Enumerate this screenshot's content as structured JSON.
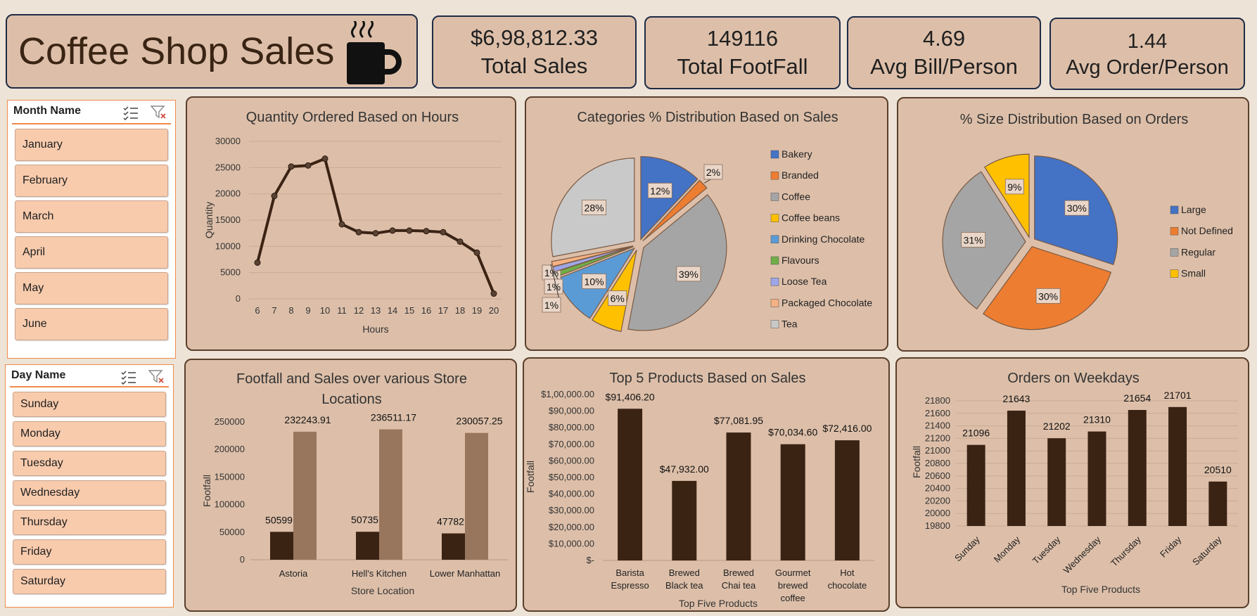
{
  "header": {
    "title": "Coffee Shop Sales",
    "icon": "coffee-mug-icon"
  },
  "kpis": [
    {
      "value": "$6,98,812.33",
      "label": "Total Sales"
    },
    {
      "value": "149116",
      "label": "Total FootFall"
    },
    {
      "value": "4.69",
      "label": "Avg Bill/Person"
    },
    {
      "value": "1.44",
      "label": "Avg Order/Person"
    }
  ],
  "month_slicer": {
    "title": "Month Name",
    "items": [
      "January",
      "February",
      "March",
      "April",
      "May",
      "June"
    ]
  },
  "day_slicer": {
    "title": "Day Name",
    "items": [
      "Sunday",
      "Monday",
      "Tuesday",
      "Wednesday",
      "Thursday",
      "Friday",
      "Saturday"
    ]
  },
  "colors": {
    "dark_brown": "#3b2314",
    "light_brown": "#98765d",
    "panel": "#ddbfa9",
    "slicer_button": "#f8cbad"
  },
  "chart_data": [
    {
      "id": "hours",
      "type": "line",
      "title": "Quantity Ordered Based on Hours",
      "xlabel": "Hours",
      "ylabel": "Quantity",
      "ylim": [
        0,
        30000
      ],
      "yticks": [
        "0",
        "5000",
        "10000",
        "15000",
        "20000",
        "25000",
        "30000"
      ],
      "x": [
        "6",
        "7",
        "8",
        "9",
        "10",
        "11",
        "12",
        "13",
        "14",
        "15",
        "16",
        "17",
        "18",
        "19",
        "20"
      ],
      "values": [
        6900,
        19600,
        25200,
        25400,
        26700,
        14200,
        12700,
        12500,
        13000,
        13000,
        12900,
        12700,
        10900,
        8800,
        1000
      ]
    },
    {
      "id": "categories",
      "type": "pie",
      "title": "Categories % Distribution Based on Sales",
      "labels": [
        "Bakery",
        "Branded",
        "Coffee",
        "Coffee beans",
        "Drinking Chocolate",
        "Flavours",
        "Loose Tea",
        "Packaged Chocolate",
        "Tea"
      ],
      "values": [
        12,
        2,
        39,
        6,
        10,
        1,
        1,
        1,
        28
      ],
      "data_labels": [
        "12%",
        "2%",
        "39%",
        "6%",
        "10%",
        "1%",
        "1%",
        "1%",
        "28%"
      ],
      "colors": [
        "#4472c4",
        "#ed7d31",
        "#a5a5a5",
        "#ffc000",
        "#5b9bd5",
        "#70ad47",
        "#9ea6e6",
        "#f4b183",
        "#c9c9c9"
      ],
      "legend": "right"
    },
    {
      "id": "sizes",
      "type": "pie",
      "title": "% Size Distribution Based on Orders",
      "labels": [
        "Large",
        "Not Defined",
        "Regular",
        "Small"
      ],
      "values": [
        30,
        30,
        31,
        9
      ],
      "data_labels": [
        "30%",
        "30%",
        "31%",
        "9%"
      ],
      "colors": [
        "#4472c4",
        "#ed7d31",
        "#a5a5a5",
        "#ffc000"
      ],
      "legend": "right"
    },
    {
      "id": "stores",
      "type": "bar",
      "title": "Footfall and Sales over various Store Locations",
      "title_lines": [
        "Footfall and Sales over various Store",
        "Locations"
      ],
      "xlabel": "Store Location",
      "ylabel": "Footfall",
      "ylim": [
        0,
        250000
      ],
      "yticks": [
        "0",
        "50000",
        "100000",
        "150000",
        "200000",
        "250000"
      ],
      "categories": [
        "Astoria",
        "Hell's Kitchen",
        "Lower Manhattan"
      ],
      "series": [
        {
          "name": "Footfall",
          "values": [
            50599,
            50735,
            47782
          ],
          "labels": [
            "50599",
            "50735",
            "47782"
          ]
        },
        {
          "name": "Sales",
          "values": [
            232243.91,
            236511.17,
            230057.25
          ],
          "labels": [
            "232243.91",
            "236511.17",
            "230057.25"
          ]
        }
      ]
    },
    {
      "id": "products",
      "type": "bar",
      "title": "Top 5 Products Based on Sales",
      "xlabel": "Top Five Products",
      "ylabel": "Footfall",
      "ylim": [
        0,
        100000
      ],
      "yticks": [
        "$-",
        "$10,000.00",
        "$20,000.00",
        "$30,000.00",
        "$40,000.00",
        "$50,000.00",
        "$60,000.00",
        "$70,000.00",
        "$80,000.00",
        "$90,000.00",
        "$1,00,000.00"
      ],
      "categories": [
        [
          "Barista",
          "Espresso"
        ],
        [
          "Brewed",
          "Black tea"
        ],
        [
          "Brewed",
          "Chai tea"
        ],
        [
          "Gourmet",
          "brewed",
          "coffee"
        ],
        [
          "Hot",
          "chocolate"
        ]
      ],
      "values": [
        91406.2,
        47932.0,
        77081.95,
        70034.6,
        72416.0
      ],
      "labels": [
        "$91,406.20",
        "$47,932.00",
        "$77,081.95",
        "$70,034.60",
        "$72,416.00"
      ]
    },
    {
      "id": "weekdays",
      "type": "bar",
      "title": "Orders on Weekdays",
      "xlabel": "Top Five Products",
      "ylabel": "Footfall",
      "ylim": [
        19800,
        21800
      ],
      "yticks": [
        "19800",
        "20000",
        "20200",
        "20400",
        "20600",
        "20800",
        "21000",
        "21200",
        "21400",
        "21600",
        "21800"
      ],
      "categories": [
        "Sunday",
        "Monday",
        "Tuesday",
        "Wednesday",
        "Thursday",
        "Friday",
        "Saturday"
      ],
      "values": [
        21096,
        21643,
        21202,
        21310,
        21654,
        21701,
        20510
      ],
      "labels": [
        "21096",
        "21643",
        "21202",
        "21310",
        "21654",
        "21701",
        "20510"
      ]
    }
  ]
}
